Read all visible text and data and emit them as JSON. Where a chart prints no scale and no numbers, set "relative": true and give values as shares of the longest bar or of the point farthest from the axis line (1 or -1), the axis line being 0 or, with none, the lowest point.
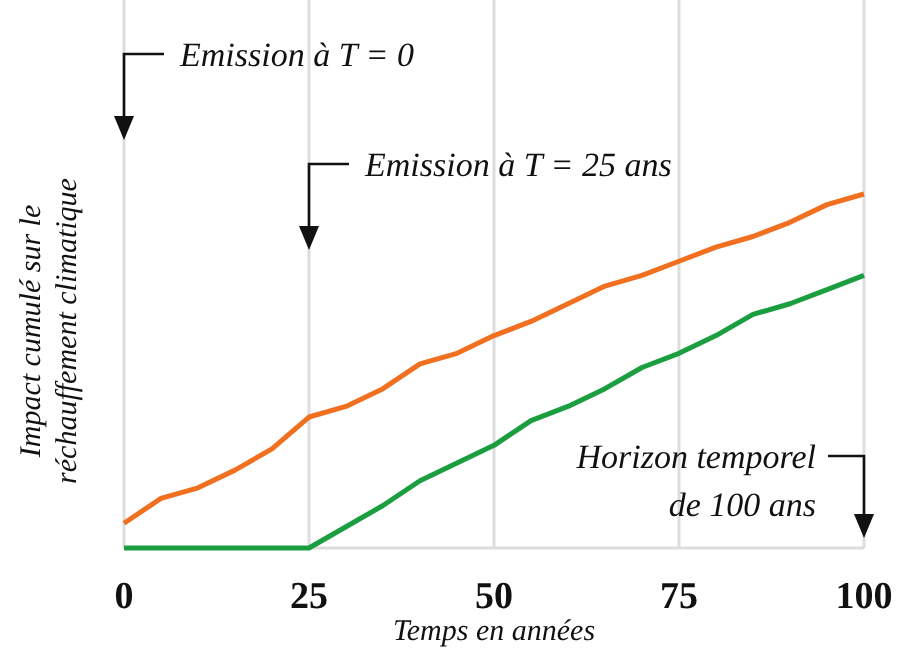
{
  "chart_data": {
    "type": "line",
    "relative": true,
    "xlabel": "Temps en années",
    "ylabel": "Impact cumulé sur le réchauffement climatique",
    "x": [
      0,
      5,
      10,
      15,
      20,
      25,
      30,
      35,
      40,
      45,
      50,
      55,
      60,
      65,
      70,
      75,
      80,
      85,
      90,
      95,
      100
    ],
    "xlim": [
      0,
      100
    ],
    "xticks": [
      0,
      25,
      50,
      75,
      100
    ],
    "grid": "x",
    "marker": "none",
    "line_style": "solid",
    "series": [
      {
        "color": "#f07020",
        "values": [
          0.07,
          0.14,
          0.17,
          0.22,
          0.28,
          0.37,
          0.4,
          0.45,
          0.52,
          0.55,
          0.6,
          0.64,
          0.69,
          0.74,
          0.77,
          0.81,
          0.85,
          0.88,
          0.92,
          0.97,
          1
        ]
      },
      {
        "color": "#1a9e40",
        "values": [
          0,
          0,
          0,
          0,
          0,
          0,
          0.06,
          0.12,
          0.19,
          0.24,
          0.29,
          0.36,
          0.4,
          0.45,
          0.51,
          0.55,
          0.6,
          0.66,
          0.69,
          0.73,
          0.77
        ]
      }
    ],
    "annotations": [
      "Emission à T = 0",
      "Emission à T = 25 ans",
      "Horizon temporel\nde 100 ans"
    ]
  }
}
